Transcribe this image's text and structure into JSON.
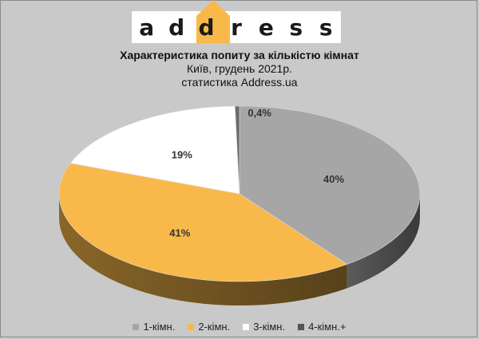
{
  "logo": {
    "letters": [
      "a",
      "d",
      "d",
      "r",
      "e",
      "s",
      "s"
    ],
    "accent_color": "#f9b94a",
    "highlight_index": 2
  },
  "header": {
    "title": "Характеристика попиту за кількістю кімнат",
    "subtitle_line1": "Київ, грудень 2021р.",
    "subtitle_line2": "статистика Address.ua"
  },
  "chart_data": {
    "type": "pie",
    "style": "3d",
    "categories": [
      "1-кімн.",
      "2-кімн.",
      "3-кімн.",
      "4-кімн.+"
    ],
    "values": [
      40,
      41,
      19,
      0.4
    ],
    "labels": [
      "40%",
      "41%",
      "19%",
      "0,4%"
    ],
    "colors": [
      "#a6a6a6",
      "#f9b94a",
      "#ffffff",
      "#6b6b6b"
    ],
    "legend_position": "bottom"
  },
  "legend": {
    "items": [
      {
        "label": "1-кімн.",
        "color": "#a6a6a6"
      },
      {
        "label": "2-кімн.",
        "color": "#f9b94a"
      },
      {
        "label": "3-кімн.",
        "color": "#ffffff"
      },
      {
        "label": "4-кімн.+",
        "color": "#555555"
      }
    ]
  }
}
